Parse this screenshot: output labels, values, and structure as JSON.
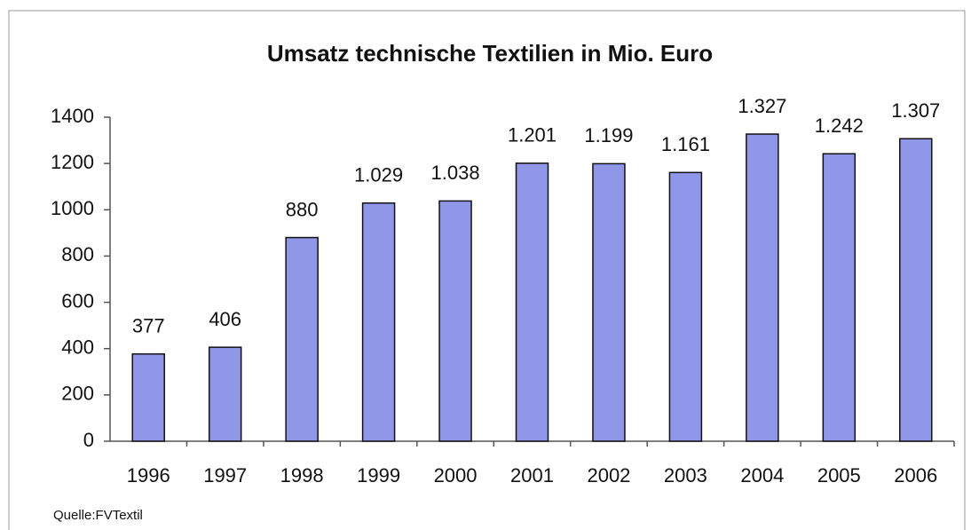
{
  "chart_data": {
    "type": "bar",
    "title": "Umsatz technische Textilien in Mio. Euro",
    "categories": [
      "1996",
      "1997",
      "1998",
      "1999",
      "2000",
      "2001",
      "2002",
      "2003",
      "2004",
      "2005",
      "2006"
    ],
    "values": [
      377,
      406,
      880,
      1029,
      1038,
      1201,
      1199,
      1161,
      1327,
      1242,
      1307
    ],
    "value_labels": [
      "377",
      "406",
      "880",
      "1.029",
      "1.038",
      "1.201",
      "1.199",
      "1.161",
      "1.327",
      "1.242",
      "1.307"
    ],
    "color": "#9097e8",
    "ylim": [
      0,
      1400
    ],
    "yticks": [
      0,
      200,
      400,
      600,
      800,
      1000,
      1200,
      1400
    ],
    "grid": false,
    "source": "Quelle:FVTextil"
  }
}
